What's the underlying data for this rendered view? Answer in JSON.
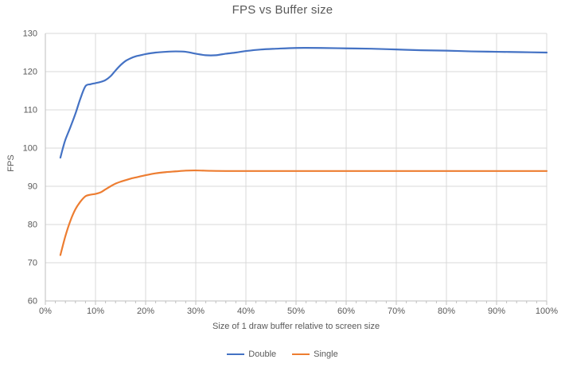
{
  "chart_data": {
    "type": "line",
    "title": "FPS vs Buffer size",
    "xlabel": "Size of 1 draw buffer relative to screen size",
    "ylabel": "FPS",
    "xlim": [
      0,
      100
    ],
    "ylim": [
      60,
      130
    ],
    "grid": true,
    "legend_position": "bottom",
    "x_ticks": {
      "values": [
        0,
        10,
        20,
        30,
        40,
        50,
        60,
        70,
        80,
        90,
        100
      ],
      "labels": [
        "0%",
        "10%",
        "20%",
        "30%",
        "40%",
        "50%",
        "60%",
        "70%",
        "80%",
        "90%",
        "100%"
      ],
      "minor_step_pct": 2
    },
    "y_ticks": {
      "values": [
        60,
        70,
        80,
        90,
        100,
        110,
        120,
        130
      ],
      "labels": [
        "60",
        "70",
        "80",
        "90",
        "100",
        "110",
        "120",
        "130"
      ]
    },
    "series": [
      {
        "name": "Double",
        "color": "#4472C4",
        "points": [
          [
            3,
            97.5
          ],
          [
            3.5,
            100
          ],
          [
            4,
            102.2
          ],
          [
            5,
            105.5
          ],
          [
            6,
            109
          ],
          [
            7,
            113
          ],
          [
            8,
            116.2
          ],
          [
            9,
            116.7
          ],
          [
            10,
            117
          ],
          [
            11,
            117.3
          ],
          [
            12,
            117.8
          ],
          [
            13,
            118.8
          ],
          [
            14,
            120.3
          ],
          [
            15,
            121.7
          ],
          [
            16,
            122.8
          ],
          [
            17,
            123.5
          ],
          [
            18,
            124
          ],
          [
            19,
            124.3
          ],
          [
            20,
            124.6
          ],
          [
            22,
            125
          ],
          [
            24,
            125.2
          ],
          [
            26,
            125.3
          ],
          [
            28,
            125.2
          ],
          [
            30,
            124.7
          ],
          [
            32,
            124.3
          ],
          [
            34,
            124.3
          ],
          [
            36,
            124.7
          ],
          [
            38,
            125
          ],
          [
            40,
            125.4
          ],
          [
            43,
            125.8
          ],
          [
            46,
            126
          ],
          [
            50,
            126.2
          ],
          [
            55,
            126.2
          ],
          [
            60,
            126.1
          ],
          [
            65,
            126
          ],
          [
            70,
            125.8
          ],
          [
            75,
            125.6
          ],
          [
            80,
            125.5
          ],
          [
            85,
            125.3
          ],
          [
            90,
            125.2
          ],
          [
            95,
            125.1
          ],
          [
            100,
            125
          ]
        ]
      },
      {
        "name": "Single",
        "color": "#ED7D31",
        "points": [
          [
            3,
            72
          ],
          [
            4,
            77
          ],
          [
            5,
            81
          ],
          [
            6,
            84
          ],
          [
            7,
            86
          ],
          [
            8,
            87.4
          ],
          [
            9,
            87.8
          ],
          [
            10,
            88
          ],
          [
            11,
            88.4
          ],
          [
            12,
            89.2
          ],
          [
            13,
            90
          ],
          [
            14,
            90.7
          ],
          [
            15,
            91.2
          ],
          [
            16,
            91.6
          ],
          [
            17,
            92
          ],
          [
            18,
            92.3
          ],
          [
            20,
            92.9
          ],
          [
            22,
            93.4
          ],
          [
            24,
            93.7
          ],
          [
            26,
            93.9
          ],
          [
            28,
            94.1
          ],
          [
            30,
            94.15
          ],
          [
            33,
            94.05
          ],
          [
            36,
            94
          ],
          [
            40,
            94
          ],
          [
            45,
            94
          ],
          [
            50,
            94
          ],
          [
            55,
            94
          ],
          [
            60,
            94
          ],
          [
            65,
            94
          ],
          [
            70,
            94
          ],
          [
            75,
            94
          ],
          [
            80,
            94
          ],
          [
            85,
            94
          ],
          [
            90,
            94
          ],
          [
            95,
            94
          ],
          [
            100,
            94
          ]
        ]
      }
    ],
    "colors": {
      "gridline": "#D9D9D9",
      "axis_line": "#BFBFBF",
      "tick_text": "#595959",
      "title_text": "#595959",
      "background": "#FFFFFF"
    }
  },
  "legend": {
    "items": [
      {
        "label": "Double"
      },
      {
        "label": "Single"
      }
    ]
  }
}
